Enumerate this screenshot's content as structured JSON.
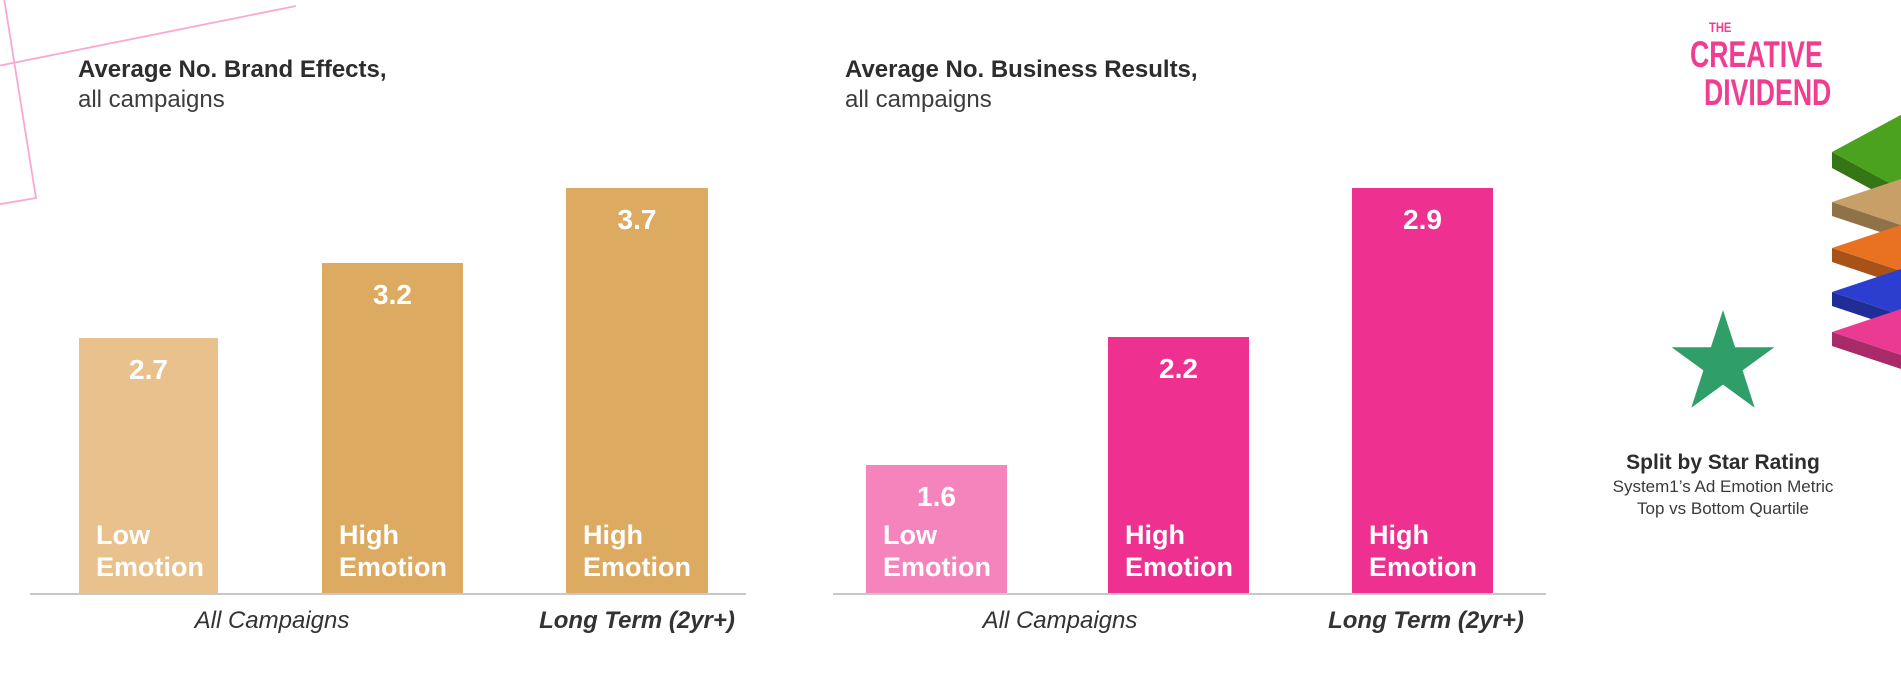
{
  "page": {
    "background": "#ffffff"
  },
  "decor": {
    "line_color": "#f8a9d3"
  },
  "chart_data": [
    {
      "id": "brand",
      "type": "bar",
      "title": "Average No. Brand Effects,",
      "subtitle": "all campaigns",
      "categories": [
        "Low Emotion",
        "High Emotion",
        "High Emotion"
      ],
      "values": [
        2.7,
        3.2,
        3.7
      ],
      "value_labels": [
        "2.7",
        "3.2",
        "3.7"
      ],
      "group_labels": [
        "All Campaigns",
        "Long Term (2yr+)"
      ],
      "ylim": [
        1,
        4
      ],
      "bar_colors": [
        "#e8c18c",
        "#dcab61",
        "#dcab61"
      ],
      "grid": false,
      "legend": false
    },
    {
      "id": "business",
      "type": "bar",
      "title": "Average No. Business Results,",
      "subtitle": "all campaigns",
      "categories": [
        "Low Emotion",
        "High Emotion",
        "High Emotion"
      ],
      "values": [
        1.6,
        2.2,
        2.9
      ],
      "value_labels": [
        "1.6",
        "2.2",
        "2.9"
      ],
      "group_labels": [
        "All Campaigns",
        "Long Term (2yr+)"
      ],
      "ylim": [
        1,
        3
      ],
      "bar_colors": [
        "#f584bd",
        "#ee3190",
        "#ee3190"
      ],
      "grid": false,
      "legend": false
    }
  ],
  "branding": {
    "logo": {
      "the": "THE",
      "line1": "CREATIVE",
      "line2": "DIVIDEND",
      "color": "#f03d92"
    },
    "layers_icon_colors": [
      "#4aa21f",
      "#c89f66",
      "#e97122",
      "#2c3ed0",
      "#ea3a92"
    ],
    "star_color": "#2f9e68",
    "caption_title": "Split by Star Rating",
    "caption_line1": "System1’s Ad Emotion Metric",
    "caption_line2": "Top vs Bottom Quartile"
  }
}
